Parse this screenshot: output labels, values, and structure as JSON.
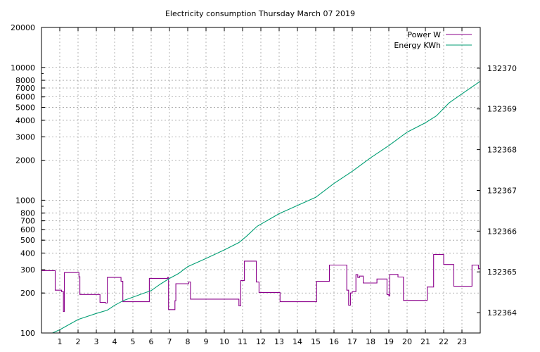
{
  "chart_data": {
    "type": "line",
    "title": "Electricity consumption Thursday March 07 2019",
    "xlabel": "",
    "ylabel": "",
    "y2label": "",
    "grid": true,
    "legend_position": "top-right",
    "xlim": [
      0,
      24
    ],
    "x_ticks": [
      1,
      2,
      3,
      4,
      5,
      6,
      7,
      8,
      9,
      10,
      11,
      12,
      13,
      14,
      15,
      16,
      17,
      18,
      19,
      20,
      21,
      22,
      23
    ],
    "ylim": [
      100,
      20000
    ],
    "y_scale": "log",
    "y_ticks": [
      100,
      200,
      300,
      400,
      500,
      600,
      700,
      800,
      1000,
      2000,
      3000,
      4000,
      5000,
      6000,
      7000,
      8000,
      10000,
      20000
    ],
    "y2lim": [
      132363.5,
      132371
    ],
    "y2_ticks": [
      132364,
      132365,
      132366,
      132367,
      132368,
      132369,
      132370
    ],
    "series": [
      {
        "name": "Power W",
        "axis": "y",
        "color": "#8b008b",
        "step": true,
        "x": [
          0,
          0.7,
          0.75,
          1.1,
          1.2,
          1.25,
          1.35,
          2.05,
          2.1,
          3.2,
          3.5,
          3.6,
          4.3,
          4.35,
          4.45,
          5.85,
          5.9,
          6.9,
          6.95,
          7.2,
          7.3,
          7.35,
          8.0,
          8.05,
          8.15,
          10.75,
          10.8,
          10.9,
          11.1,
          11.7,
          11.75,
          11.9,
          13.05,
          15.05,
          15.7,
          15.75,
          16.65,
          16.7,
          16.8,
          16.9,
          17.0,
          17.2,
          17.3,
          17.4,
          17.6,
          18.35,
          18.9,
          19.0,
          19.05,
          19.5,
          19.8,
          21.1,
          21.45,
          22.0,
          22.45,
          22.55,
          23.55,
          23.9
        ],
        "y": [
          295,
          295,
          210,
          205,
          145,
          285,
          285,
          265,
          195,
          170,
          168,
          262,
          262,
          245,
          172,
          172,
          258,
          262,
          150,
          150,
          175,
          235,
          235,
          242,
          180,
          180,
          160,
          248,
          348,
          348,
          242,
          202,
          172,
          245,
          245,
          325,
          325,
          210,
          162,
          200,
          205,
          275,
          262,
          268,
          238,
          255,
          195,
          190,
          276,
          264,
          176,
          222,
          390,
          328,
          328,
          225,
          325,
          305
        ]
      },
      {
        "name": "Energy KWh",
        "axis": "y2",
        "color": "#009e73",
        "step": false,
        "x": [
          0.6,
          1.0,
          2.0,
          3.0,
          3.6,
          4.0,
          4.5,
          5.0,
          5.5,
          6.0,
          6.5,
          7.0,
          7.5,
          8.0,
          9.0,
          10.0,
          10.8,
          11.2,
          11.8,
          12.5,
          13.0,
          14.0,
          15.0,
          16.0,
          17.0,
          18.0,
          19.0,
          20.0,
          21.0,
          21.6,
          22.3,
          23.0,
          24.0
        ],
        "y": [
          132363.5,
          132363.58,
          132363.83,
          132363.98,
          132364.06,
          132364.18,
          132364.3,
          132364.38,
          132364.46,
          132364.54,
          132364.7,
          132364.84,
          132364.96,
          132365.13,
          132365.33,
          132365.54,
          132365.72,
          132365.87,
          132366.12,
          132366.3,
          132366.43,
          132366.63,
          132366.83,
          132367.17,
          132367.47,
          132367.8,
          132368.1,
          132368.43,
          132368.66,
          132368.83,
          132369.15,
          132369.37,
          132369.68
        ]
      }
    ]
  }
}
